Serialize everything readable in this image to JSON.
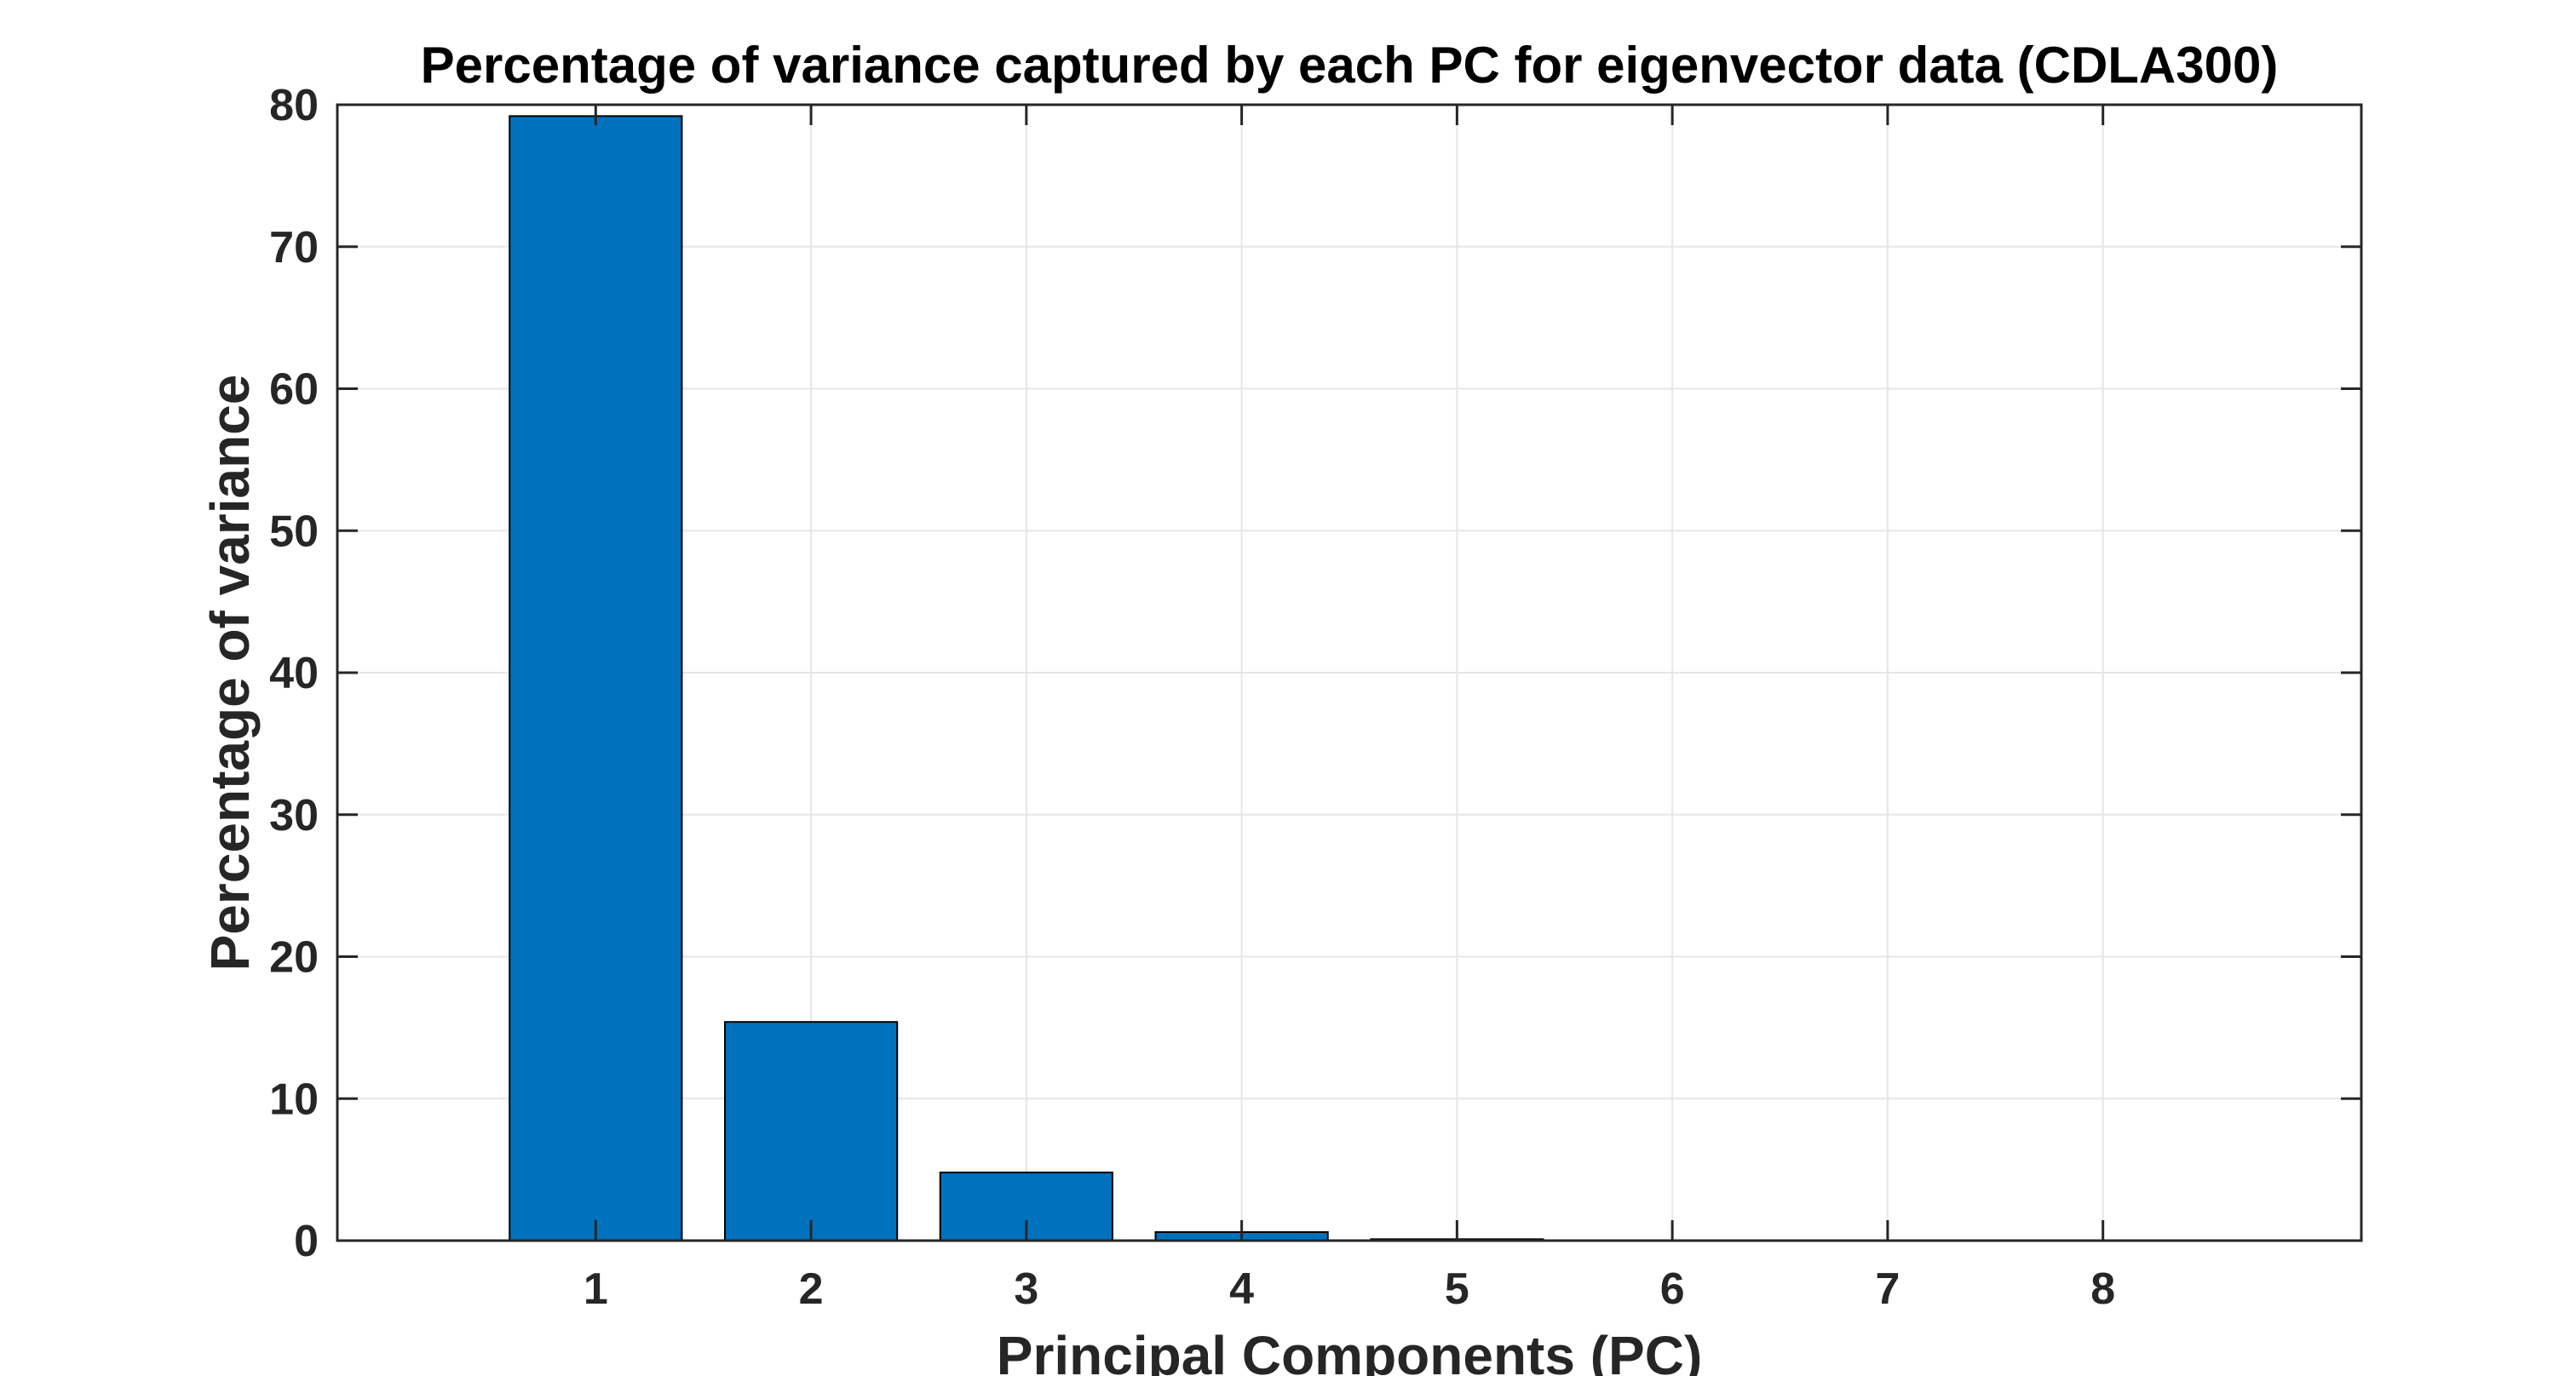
{
  "chart_data": {
    "type": "bar",
    "title": "Percentage of variance captured by each PC for eigenvector data (CDLA300)",
    "xlabel": "Principal Components (PC)",
    "ylabel": "Percentage of variance",
    "categories": [
      "1",
      "2",
      "3",
      "4",
      "5",
      "6",
      "7",
      "8"
    ],
    "values": [
      79.2,
      15.4,
      4.8,
      0.6,
      0.1,
      0.0,
      0.0,
      0.0
    ],
    "xlim": [
      -0.2,
      9.2
    ],
    "ylim": [
      0,
      80
    ],
    "yticks": [
      "0",
      "10",
      "20",
      "30",
      "40",
      "50",
      "60",
      "70",
      "80"
    ],
    "xticks": [
      "1",
      "2",
      "3",
      "4",
      "5",
      "6",
      "7",
      "8"
    ],
    "grid": true,
    "bar_color": "#0072BD",
    "bar_edge_color": "#000000",
    "axis_color": "#262626",
    "grid_color": "#E6E6E6"
  }
}
